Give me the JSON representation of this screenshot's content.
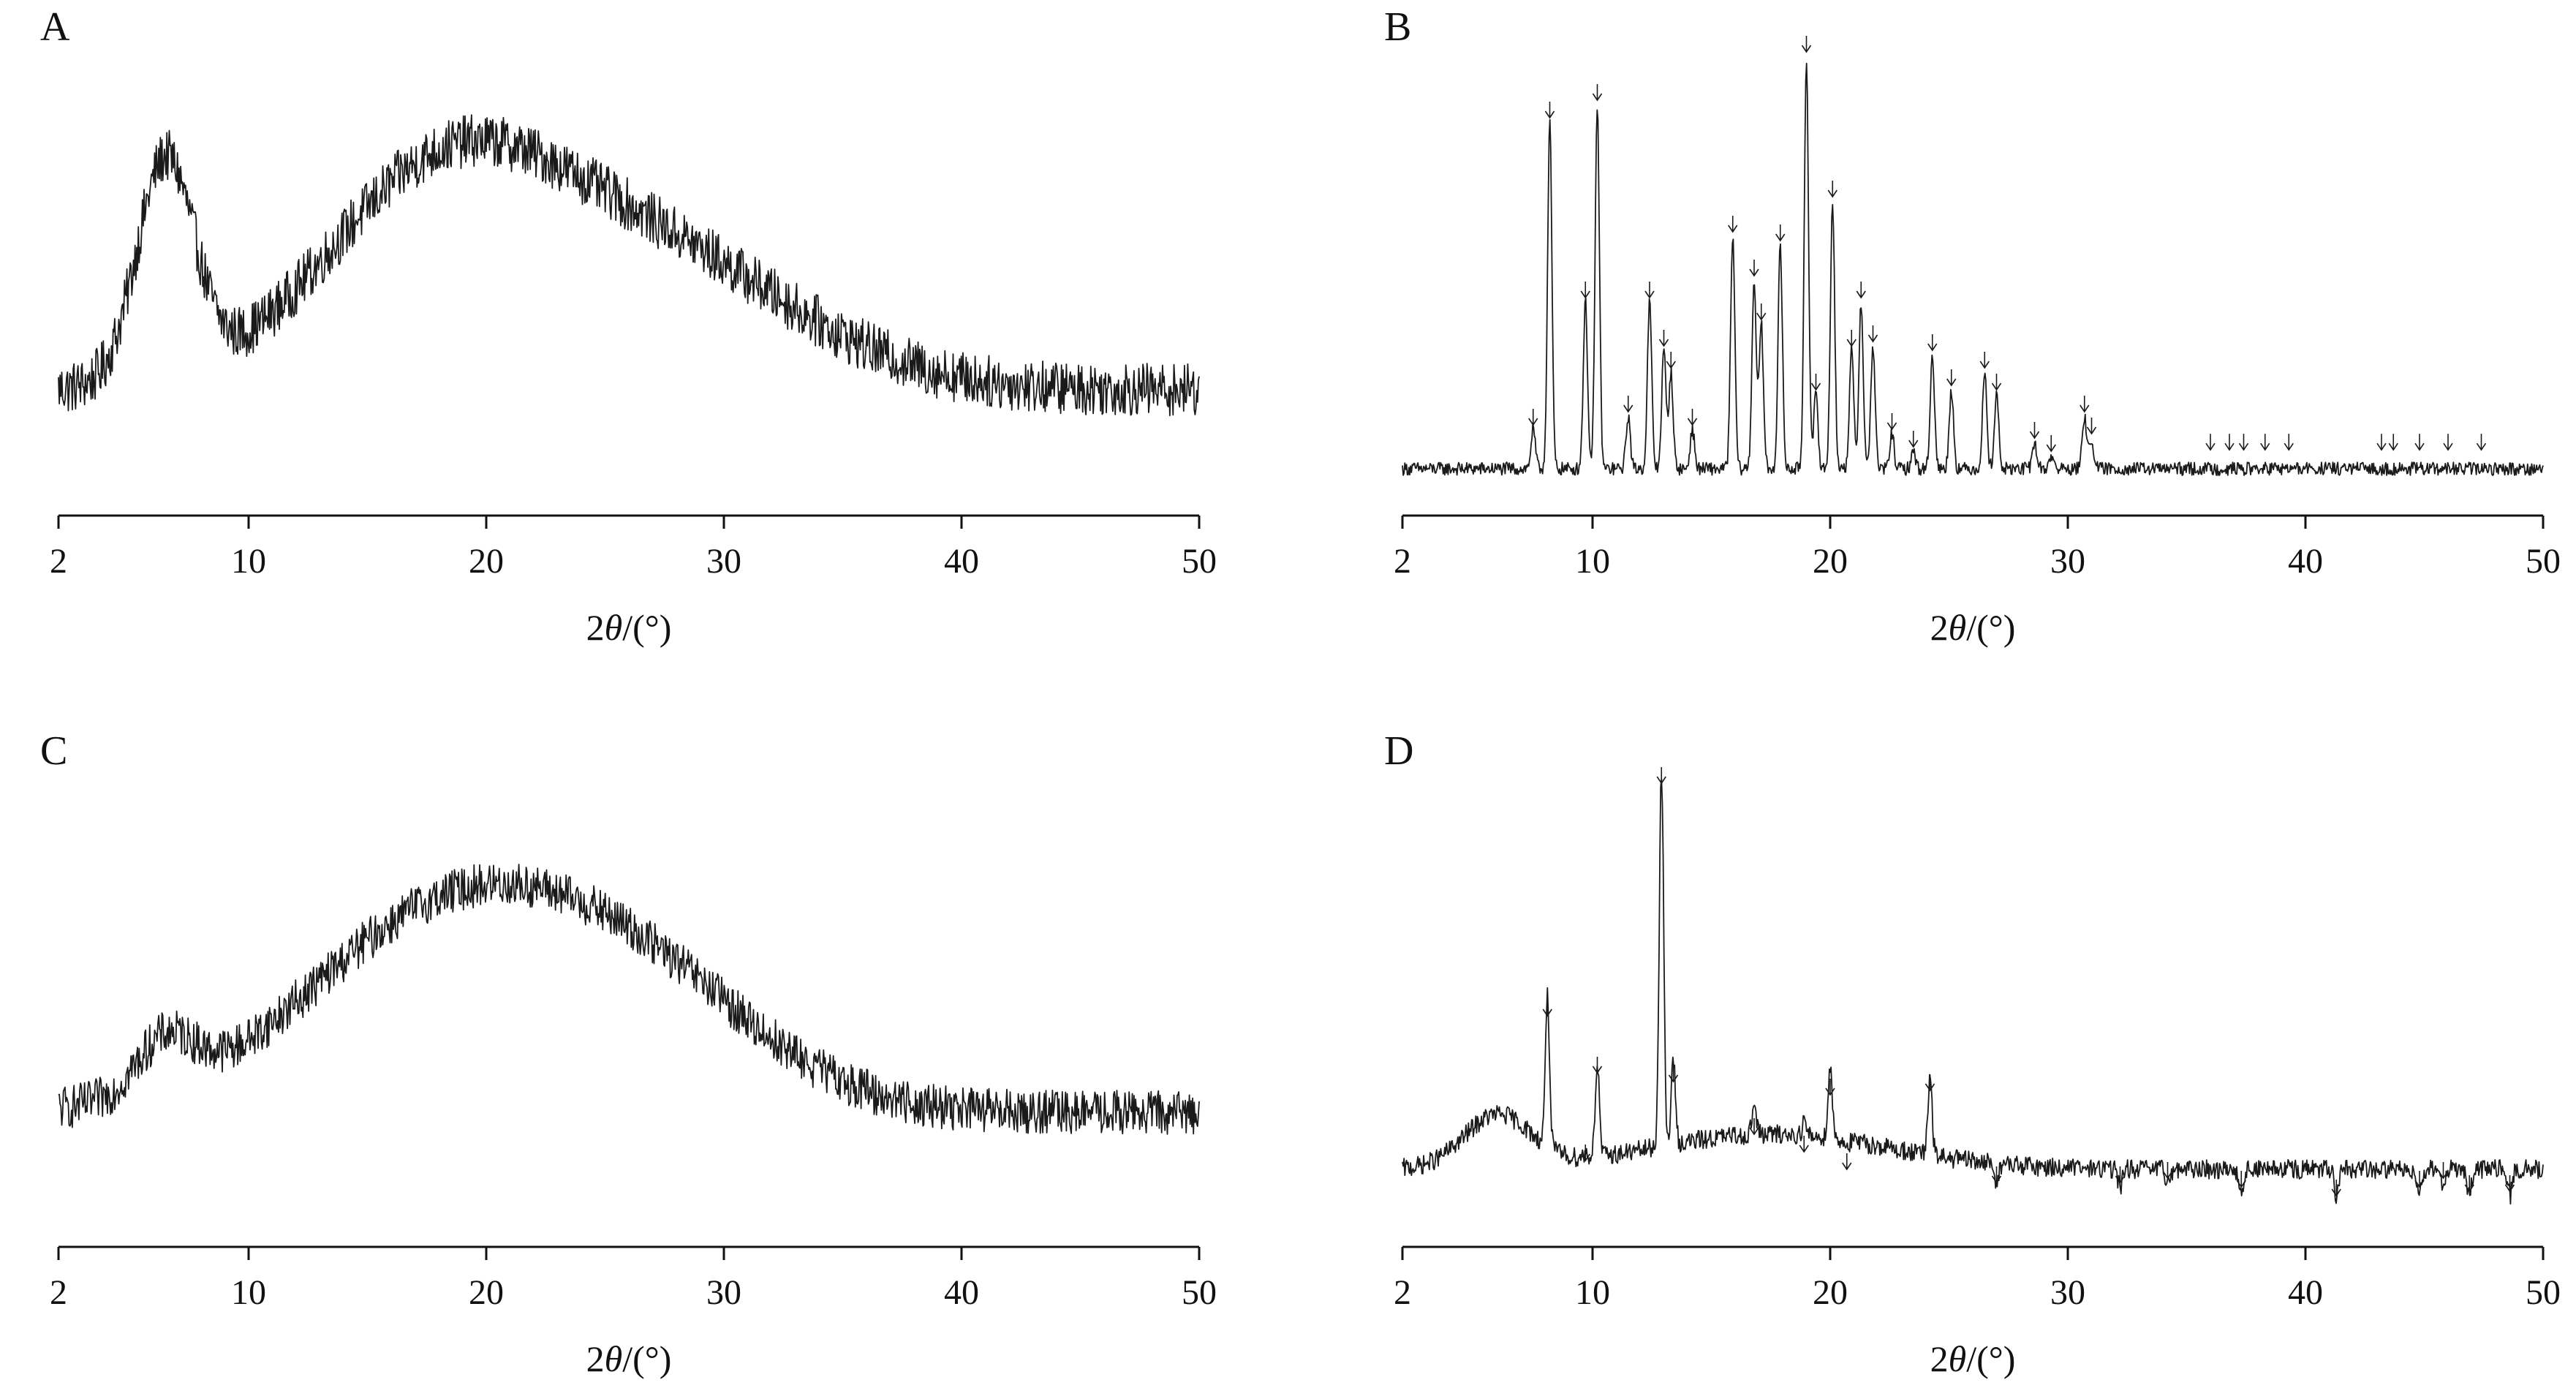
{
  "figure": {
    "x_axis_label_parts": [
      "2",
      "θ",
      "/(°)"
    ]
  },
  "chart_data": [
    {
      "panel": "A",
      "type": "line",
      "pattern": "amorphous",
      "xlabel": "2θ/(°)",
      "xlim": [
        2,
        50
      ],
      "xticks": [
        2,
        10,
        20,
        30,
        40,
        50
      ],
      "ylim": [
        0,
        100
      ],
      "y_axis_shown": false,
      "grid": false,
      "legend": "none",
      "baseline": 22,
      "noise_amplitude": 6,
      "broad_features": [
        {
          "center": 6.5,
          "height": 50,
          "width": 1.2
        },
        {
          "center": 18,
          "height": 45,
          "width": 5
        },
        {
          "center": 27,
          "height": 30,
          "width": 6
        }
      ],
      "peak_markers": []
    },
    {
      "panel": "B",
      "type": "line",
      "pattern": "crystalline",
      "xlabel": "2θ/(°)",
      "xlim": [
        2,
        50
      ],
      "xticks": [
        2,
        10,
        20,
        30,
        40,
        50
      ],
      "ylim": [
        0,
        100
      ],
      "y_axis_shown": false,
      "grid": false,
      "legend": "none",
      "baseline": 4,
      "noise_amplitude": 1.5,
      "peaks": [
        {
          "x": 7.5,
          "y": 13
        },
        {
          "x": 8.2,
          "y": 83
        },
        {
          "x": 9.7,
          "y": 42
        },
        {
          "x": 10.2,
          "y": 87
        },
        {
          "x": 11.5,
          "y": 16
        },
        {
          "x": 12.4,
          "y": 42
        },
        {
          "x": 13.0,
          "y": 31
        },
        {
          "x": 13.3,
          "y": 26
        },
        {
          "x": 14.2,
          "y": 13
        },
        {
          "x": 15.9,
          "y": 57
        },
        {
          "x": 16.8,
          "y": 47
        },
        {
          "x": 17.1,
          "y": 37
        },
        {
          "x": 17.9,
          "y": 55
        },
        {
          "x": 19.0,
          "y": 98
        },
        {
          "x": 19.4,
          "y": 21
        },
        {
          "x": 20.1,
          "y": 65
        },
        {
          "x": 20.9,
          "y": 31
        },
        {
          "x": 21.3,
          "y": 42
        },
        {
          "x": 21.8,
          "y": 32
        },
        {
          "x": 22.6,
          "y": 12
        },
        {
          "x": 23.5,
          "y": 8
        },
        {
          "x": 24.3,
          "y": 30
        },
        {
          "x": 25.1,
          "y": 22
        },
        {
          "x": 26.5,
          "y": 26
        },
        {
          "x": 27.0,
          "y": 21
        },
        {
          "x": 28.6,
          "y": 10
        },
        {
          "x": 29.3,
          "y": 7
        },
        {
          "x": 30.7,
          "y": 16
        },
        {
          "x": 31.0,
          "y": 11
        }
      ],
      "peak_markers": [
        7.5,
        8.2,
        9.7,
        10.2,
        11.5,
        12.4,
        13.0,
        13.3,
        14.2,
        15.9,
        16.8,
        17.1,
        17.9,
        19.0,
        19.4,
        20.1,
        20.9,
        21.3,
        21.8,
        22.6,
        23.5,
        24.3,
        25.1,
        26.5,
        27.0,
        28.6,
        29.3,
        30.7,
        31.0,
        36.0,
        36.8,
        37.4,
        38.3,
        39.3,
        43.2,
        43.7,
        44.8,
        46.0,
        47.4
      ]
    },
    {
      "panel": "C",
      "type": "line",
      "pattern": "amorphous",
      "xlabel": "2θ/(°)",
      "xlim": [
        2,
        50
      ],
      "xticks": [
        2,
        10,
        20,
        30,
        40,
        50
      ],
      "ylim": [
        0,
        100
      ],
      "y_axis_shown": false,
      "grid": false,
      "legend": "none",
      "baseline": 24,
      "noise_amplitude": 5,
      "broad_features": [
        {
          "center": 6.5,
          "height": 12,
          "width": 1.2
        },
        {
          "center": 18.5,
          "height": 45,
          "width": 6
        },
        {
          "center": 27,
          "height": 22,
          "width": 5
        }
      ],
      "peak_markers": []
    },
    {
      "panel": "D",
      "type": "line",
      "pattern": "crystalline",
      "xlabel": "2θ/(°)",
      "xlim": [
        2,
        50
      ],
      "xticks": [
        2,
        10,
        20,
        30,
        40,
        50
      ],
      "ylim": [
        0,
        100
      ],
      "y_axis_shown": false,
      "grid": false,
      "legend": "none",
      "baseline": 11,
      "noise_amplitude": 2.2,
      "broad_features": [
        {
          "center": 6.0,
          "height": 12,
          "width": 1.4
        },
        {
          "center": 17.5,
          "height": 8,
          "width": 5
        }
      ],
      "peaks": [
        {
          "x": 8.1,
          "y": 45
        },
        {
          "x": 9.7,
          "y": 12
        },
        {
          "x": 10.2,
          "y": 32
        },
        {
          "x": 12.9,
          "y": 98
        },
        {
          "x": 13.4,
          "y": 30
        },
        {
          "x": 16.8,
          "y": 18
        },
        {
          "x": 18.9,
          "y": 14
        },
        {
          "x": 20.0,
          "y": 27
        },
        {
          "x": 20.7,
          "y": 10
        },
        {
          "x": 24.2,
          "y": 28
        },
        {
          "x": 27.0,
          "y": 7
        },
        {
          "x": 32.2,
          "y": 7
        },
        {
          "x": 34.2,
          "y": 8
        },
        {
          "x": 37.3,
          "y": 6
        },
        {
          "x": 41.3,
          "y": 4
        },
        {
          "x": 44.8,
          "y": 6
        },
        {
          "x": 45.8,
          "y": 8
        },
        {
          "x": 46.9,
          "y": 5
        },
        {
          "x": 48.6,
          "y": 5
        }
      ],
      "peak_markers": [
        8.1,
        9.7,
        10.2,
        12.9,
        13.4,
        16.8,
        18.9,
        20.0,
        20.7,
        24.2,
        27.0,
        32.2,
        34.2,
        37.3,
        41.3,
        44.8,
        45.8,
        46.9,
        48.6
      ]
    }
  ]
}
